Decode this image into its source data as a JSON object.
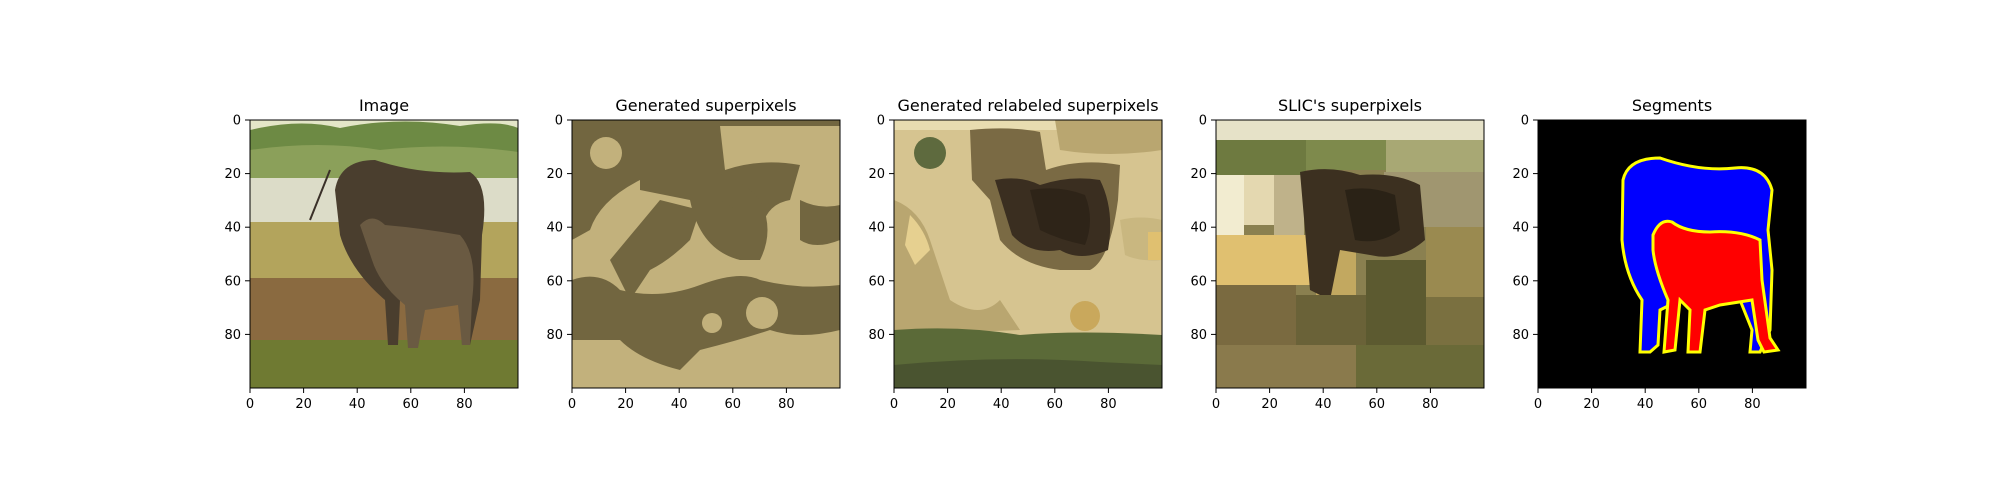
{
  "figure": {
    "panel_count": 5
  },
  "chart_data": [
    {
      "type": "heatmap",
      "title": "Image",
      "content": "photo of an adult sheep and a lamb standing on grass in front of water and trees",
      "xlim": [
        0,
        100
      ],
      "ylim": [
        100,
        0
      ],
      "xticks": [
        0,
        20,
        40,
        60,
        80
      ],
      "yticks": [
        0,
        20,
        40,
        60,
        80
      ]
    },
    {
      "type": "heatmap",
      "title": "Generated superpixels",
      "content": "two-tone blob pattern (light tan and olive brown)",
      "colors": [
        "#c2b17c",
        "#726640"
      ],
      "xlim": [
        0,
        100
      ],
      "ylim": [
        100,
        0
      ],
      "xticks": [
        0,
        20,
        40,
        60,
        80
      ],
      "yticks": [
        0,
        20,
        40,
        60,
        80
      ]
    },
    {
      "type": "heatmap",
      "title": "Generated relabeled superpixels",
      "content": "blob pattern with many shades of tan, olive and dark brown",
      "colors": [
        "#d6c490",
        "#7a6a44",
        "#3a2e20",
        "#c9a85c",
        "#5b6a38"
      ],
      "xlim": [
        0,
        100
      ],
      "ylim": [
        100,
        0
      ],
      "xticks": [
        0,
        20,
        40,
        60,
        80
      ],
      "yticks": [
        0,
        20,
        40,
        60,
        80
      ]
    },
    {
      "type": "heatmap",
      "title": "SLIC's superpixels",
      "content": "SLIC superpixel mean-colour regions of the image",
      "colors": [
        "#8a8050",
        "#e4d8b0",
        "#e0c070",
        "#3c3020",
        "#7a7040"
      ],
      "xlim": [
        0,
        100
      ],
      "ylim": [
        100,
        0
      ],
      "xticks": [
        0,
        20,
        40,
        60,
        80
      ],
      "yticks": [
        0,
        20,
        40,
        60,
        80
      ]
    },
    {
      "type": "heatmap",
      "title": "Segments",
      "content": "segmentation mask: black background, adult sheep in blue, lamb in red, yellow outlines",
      "colors": {
        "background": "#000000",
        "sheep": "#0000ff",
        "lamb": "#ff0000",
        "outline": "#ffff00"
      },
      "xlim": [
        0,
        100
      ],
      "ylim": [
        100,
        0
      ],
      "xticks": [
        0,
        20,
        40,
        60,
        80
      ],
      "yticks": [
        0,
        20,
        40,
        60,
        80
      ]
    }
  ]
}
